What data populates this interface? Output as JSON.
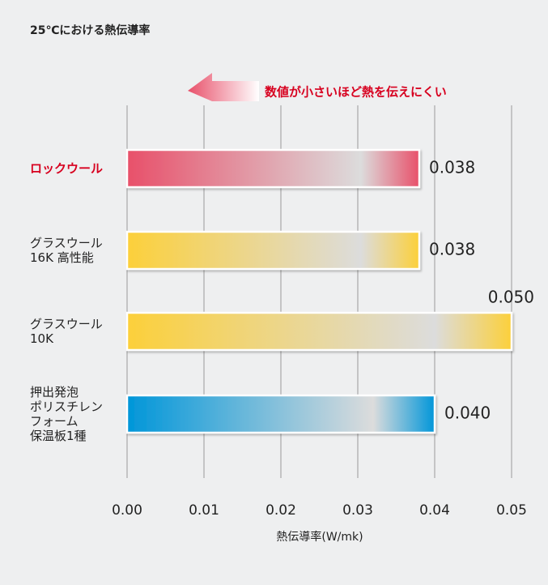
{
  "chart_data": {
    "type": "hbar",
    "title": "25℃における熱伝導率",
    "annotation": "数値が小さいほど熱を伝えにくい",
    "categories": [
      [
        "ロックウール"
      ],
      [
        "グラスウール",
        "16K 高性能"
      ],
      [
        "グラスウール",
        "10K"
      ],
      [
        "押出発泡",
        "ポリスチレン",
        "フォーム",
        "保温板1種"
      ]
    ],
    "values": [
      0.038,
      0.038,
      0.05,
      0.04
    ],
    "value_labels": [
      "0.038",
      "0.038",
      "0.050",
      "0.040"
    ],
    "colors": [
      "#e8506a",
      "#fcd03a",
      "#fcd03a",
      "#0096d9"
    ],
    "highlight_index": 0,
    "highlight_color": "#d7001f",
    "xlabel": "熱伝導率(W/mk)",
    "xlim": [
      0,
      0.05
    ],
    "xticks": [
      {
        "value": 0,
        "label": "0.00"
      },
      0.01,
      0.02,
      0.03,
      0.04,
      0.05
    ],
    "grid": true
  }
}
